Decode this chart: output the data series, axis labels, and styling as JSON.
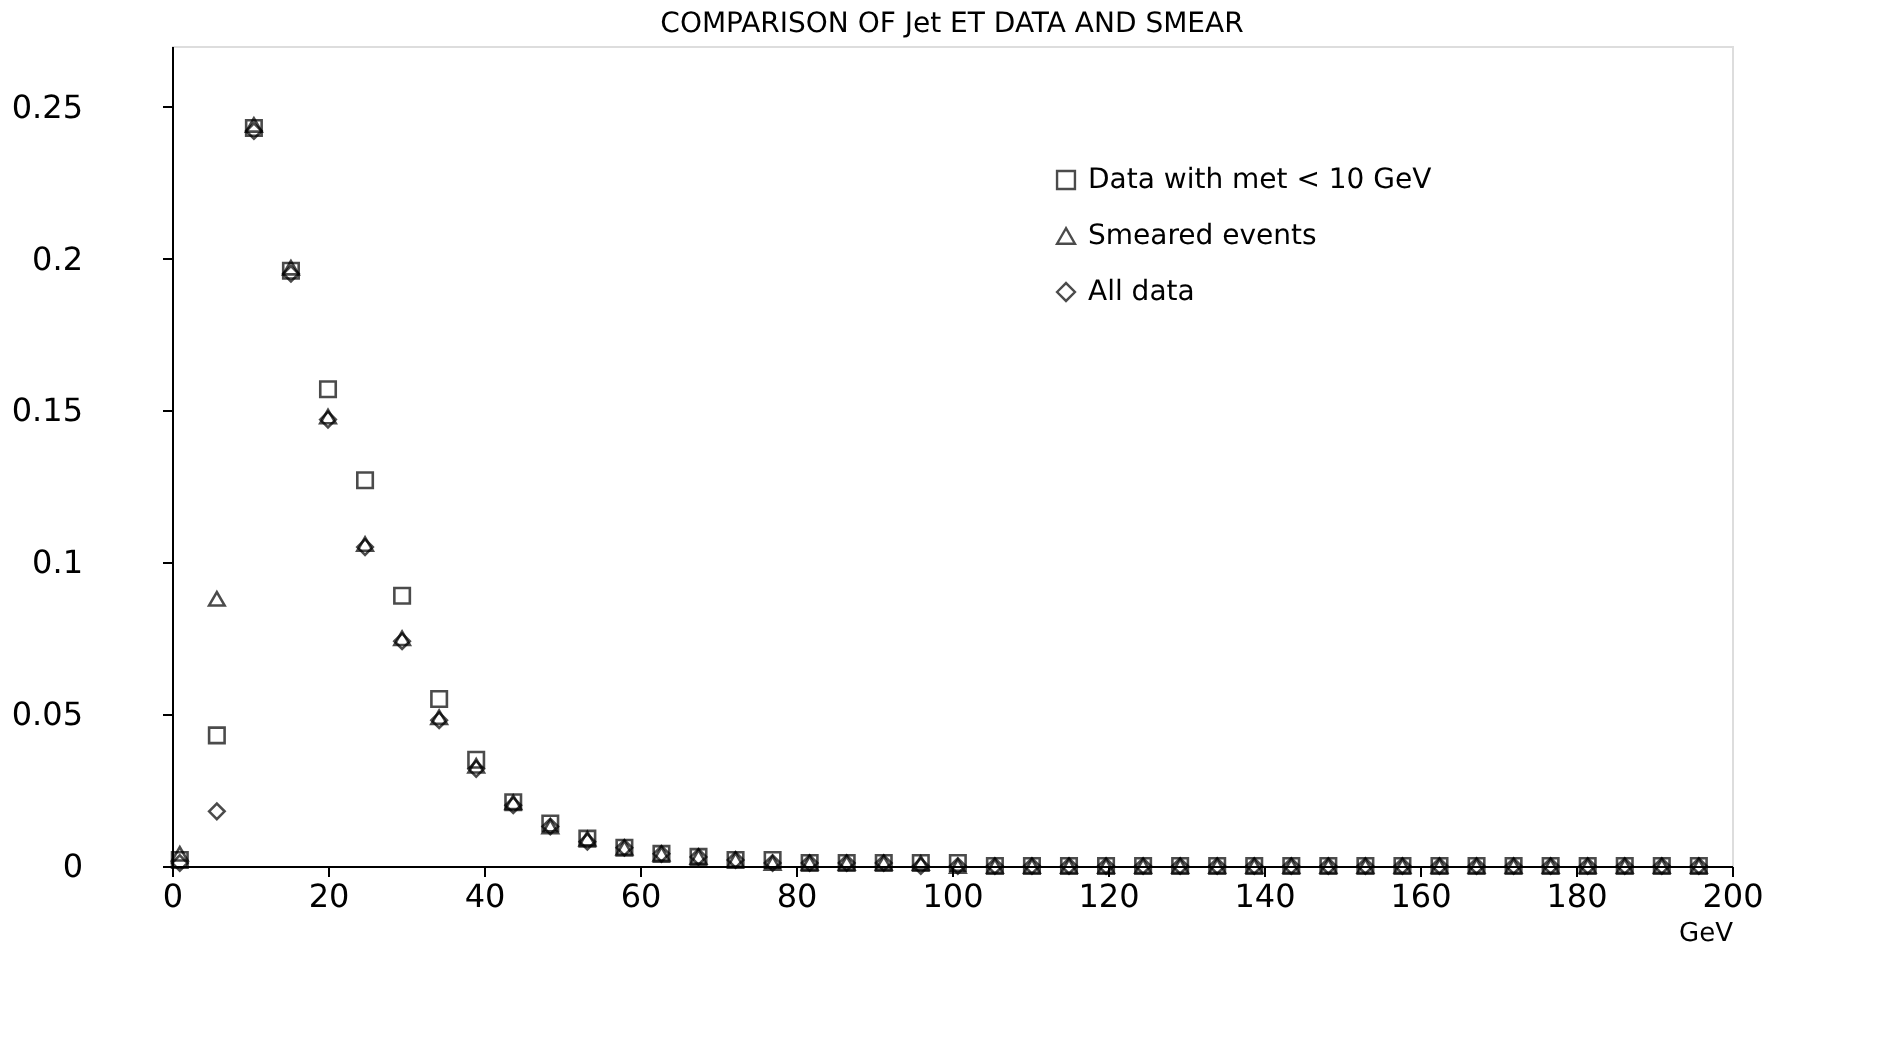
{
  "chart_data": {
    "type": "scatter",
    "title": "COMPARISON OF Jet ET DATA AND SMEAR",
    "xlabel": "GeV",
    "x": [
      1,
      5.75,
      10.5,
      15.25,
      20,
      24.75,
      29.5,
      34.25,
      39,
      43.75,
      48.5,
      53.25,
      58,
      62.75,
      67.5,
      72.25,
      77,
      81.75,
      86.5,
      91.25,
      96,
      100.75,
      105.5,
      110.25,
      115,
      119.75,
      124.5,
      129.25,
      134,
      138.75,
      143.5,
      148.25,
      153,
      157.75,
      162.5,
      167.25,
      172,
      176.75,
      181.5,
      186.25,
      191,
      195.75
    ],
    "series": [
      {
        "name": "Data with met < 10 GeV",
        "color": "#000000",
        "marker": "square",
        "values": [
          0.002,
          0.043,
          0.243,
          0.196,
          0.157,
          0.127,
          0.089,
          0.055,
          0.035,
          0.021,
          0.014,
          0.009,
          0.006,
          0.004,
          0.003,
          0.002,
          0.002,
          0.001,
          0.001,
          0.001,
          0.001,
          0.001,
          0,
          0,
          0,
          0,
          0,
          0,
          0,
          0,
          0,
          0,
          0,
          0,
          0,
          0,
          0,
          0,
          0,
          0,
          0,
          0
        ]
      },
      {
        "name": "Smeared events",
        "color": "#000000",
        "marker": "triangle",
        "values": [
          0.004,
          0.088,
          0.244,
          0.197,
          0.148,
          0.106,
          0.075,
          0.049,
          0.033,
          0.021,
          0.013,
          0.009,
          0.006,
          0.004,
          0.003,
          0.002,
          0.001,
          0.001,
          0.001,
          0.001,
          0.001,
          0,
          0,
          0,
          0,
          0,
          0,
          0,
          0,
          0,
          0,
          0,
          0,
          0,
          0,
          0,
          0,
          0,
          0,
          0,
          0,
          0
        ]
      },
      {
        "name": "All data",
        "color": "#000000",
        "marker": "diamond",
        "values": [
          0.001,
          0.018,
          0.242,
          0.195,
          0.147,
          0.105,
          0.074,
          0.048,
          0.032,
          0.02,
          0.013,
          0.008,
          0.006,
          0.004,
          0.003,
          0.002,
          0.001,
          0.001,
          0.001,
          0.001,
          0,
          0,
          0,
          0,
          0,
          0,
          0,
          0,
          0,
          0,
          0,
          0,
          0,
          0,
          0,
          0,
          0,
          0,
          0,
          0,
          0,
          0
        ]
      }
    ],
    "xlim": [
      0,
      200
    ],
    "xticks": [
      0,
      20,
      40,
      60,
      80,
      100,
      120,
      140,
      160,
      180,
      200
    ],
    "ylim": [
      0,
      0.27
    ],
    "yticks": [
      0,
      0.05,
      0.1,
      0.15,
      0.2,
      0.25
    ],
    "grid": false,
    "legend": "top right"
  }
}
